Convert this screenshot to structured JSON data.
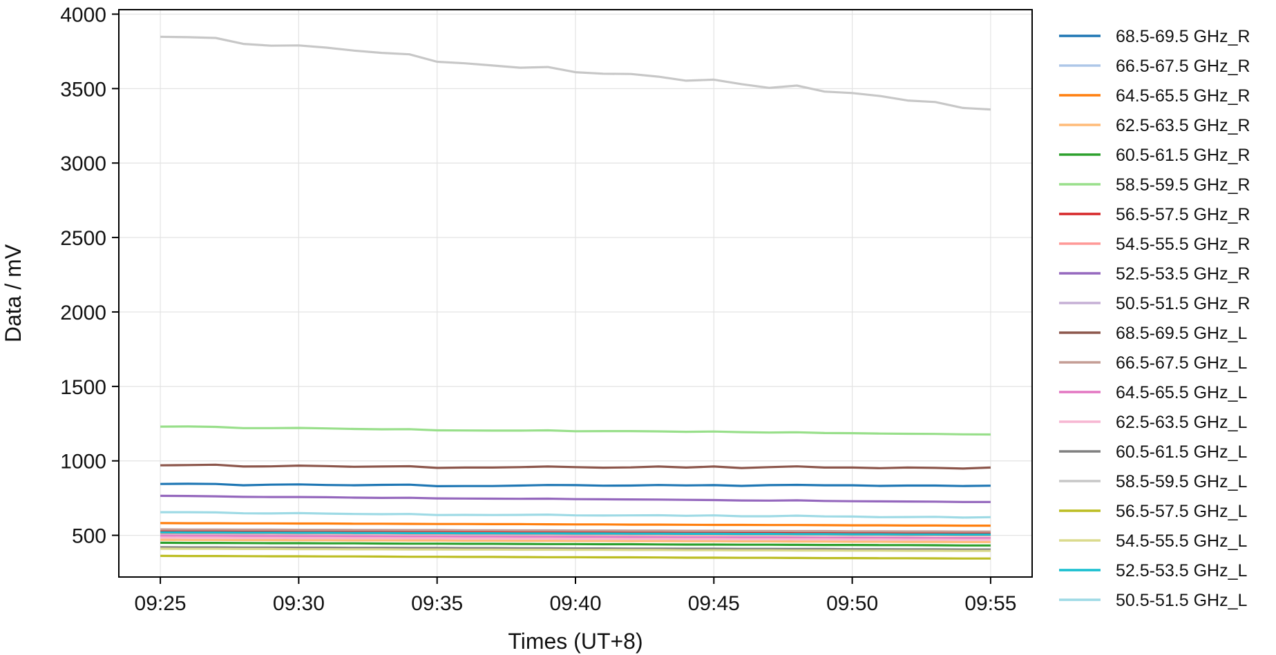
{
  "chart_data": {
    "type": "line",
    "xlabel": "Times (UT+8)",
    "ylabel": "Data / mV",
    "x_unit": "time (HH:MM, UT+8)",
    "xlim": [
      "09:23:30",
      "09:56:30"
    ],
    "ylim": [
      220,
      4030
    ],
    "x_ticks": [
      "09:25",
      "09:30",
      "09:35",
      "09:40",
      "09:45",
      "09:50",
      "09:55"
    ],
    "y_ticks": [
      500,
      1000,
      1500,
      2000,
      2500,
      3000,
      3500,
      4000
    ],
    "grid": true,
    "legend_position": "outside-right",
    "x": [
      "09:25",
      "09:26",
      "09:27",
      "09:28",
      "09:29",
      "09:30",
      "09:31",
      "09:32",
      "09:33",
      "09:34",
      "09:35",
      "09:36",
      "09:37",
      "09:38",
      "09:39",
      "09:40",
      "09:41",
      "09:42",
      "09:43",
      "09:44",
      "09:45",
      "09:46",
      "09:47",
      "09:48",
      "09:49",
      "09:50",
      "09:51",
      "09:52",
      "09:53",
      "09:54",
      "09:55"
    ],
    "series": [
      {
        "name": "68.5-69.5 GHz_R",
        "color": "#1f77b4",
        "values": [
          845,
          846,
          845,
          836,
          840,
          842,
          838,
          836,
          839,
          840,
          830,
          831,
          831,
          834,
          838,
          837,
          833,
          834,
          838,
          835,
          837,
          832,
          837,
          839,
          836,
          836,
          832,
          834,
          834,
          831,
          833
        ]
      },
      {
        "name": "66.5-67.5 GHz_R",
        "color": "#aec7e8",
        "values": [
          530,
          529,
          528,
          527,
          527,
          526,
          525,
          524,
          524,
          523,
          522,
          521,
          520,
          520,
          519,
          518,
          517,
          516,
          516,
          515,
          514,
          513,
          512,
          512,
          511,
          510,
          509,
          508,
          508,
          507,
          506
        ]
      },
      {
        "name": "64.5-65.5 GHz_R",
        "color": "#ff7f0e",
        "values": [
          582,
          581,
          581,
          580,
          580,
          579,
          579,
          578,
          578,
          577,
          576,
          576,
          575,
          575,
          574,
          573,
          573,
          572,
          572,
          571,
          570,
          570,
          569,
          569,
          568,
          567,
          567,
          566,
          566,
          565,
          565
        ]
      },
      {
        "name": "62.5-63.5 GHz_R",
        "color": "#ffbb78",
        "values": [
          470,
          469,
          469,
          468,
          468,
          467,
          467,
          466,
          466,
          465,
          465,
          464,
          464,
          463,
          463,
          462,
          462,
          461,
          461,
          460,
          460,
          459,
          459,
          458,
          458,
          457,
          457,
          456,
          456,
          455,
          455
        ]
      },
      {
        "name": "60.5-61.5 GHz_R",
        "color": "#2ca02c",
        "values": [
          450,
          449,
          449,
          448,
          447,
          447,
          446,
          446,
          445,
          444,
          444,
          443,
          443,
          442,
          441,
          441,
          440,
          440,
          439,
          438,
          438,
          437,
          437,
          436,
          435,
          435,
          434,
          434,
          433,
          432,
          432
        ]
      },
      {
        "name": "58.5-59.5 GHz_R",
        "color": "#98df8a",
        "values": [
          1230,
          1231,
          1228,
          1220,
          1220,
          1221,
          1218,
          1214,
          1212,
          1213,
          1205,
          1204,
          1203,
          1203,
          1205,
          1199,
          1200,
          1200,
          1198,
          1195,
          1197,
          1193,
          1190,
          1192,
          1187,
          1186,
          1183,
          1182,
          1181,
          1178,
          1177
        ]
      },
      {
        "name": "56.5-57.5 GHz_R",
        "color": "#d62728",
        "values": [
          527,
          526,
          526,
          525,
          525,
          524,
          524,
          523,
          523,
          522,
          522,
          521,
          521,
          520,
          520,
          519,
          519,
          518,
          518,
          517,
          517,
          516,
          516,
          515,
          515,
          514,
          514,
          513,
          513,
          512,
          512
        ]
      },
      {
        "name": "54.5-55.5 GHz_R",
        "color": "#ff9896",
        "values": [
          515,
          514,
          514,
          513,
          513,
          512,
          512,
          511,
          511,
          510,
          510,
          509,
          509,
          508,
          508,
          507,
          507,
          506,
          506,
          505,
          505,
          504,
          504,
          503,
          503,
          502,
          502,
          501,
          501,
          500,
          500
        ]
      },
      {
        "name": "52.5-53.5 GHz_R",
        "color": "#9467bd",
        "values": [
          765,
          764,
          762,
          758,
          757,
          757,
          756,
          753,
          751,
          752,
          748,
          747,
          746,
          745,
          746,
          743,
          742,
          741,
          740,
          738,
          737,
          734,
          733,
          735,
          731,
          729,
          728,
          727,
          726,
          724,
          724
        ]
      },
      {
        "name": "50.5-51.5 GHz_R",
        "color": "#c5b0d5",
        "values": [
          500,
          499,
          499,
          498,
          497,
          497,
          496,
          496,
          495,
          494,
          494,
          493,
          493,
          492,
          491,
          491,
          490,
          490,
          489,
          488,
          488,
          487,
          487,
          486,
          485,
          485,
          484,
          484,
          483,
          482,
          482
        ]
      },
      {
        "name": "68.5-69.5 GHz_L",
        "color": "#8c564b",
        "values": [
          970,
          972,
          974,
          962,
          963,
          968,
          965,
          960,
          962,
          964,
          953,
          955,
          955,
          958,
          962,
          958,
          954,
          956,
          962,
          955,
          962,
          952,
          958,
          963,
          955,
          955,
          951,
          955,
          953,
          948,
          955
        ]
      },
      {
        "name": "66.5-67.5 GHz_L",
        "color": "#c49c94",
        "values": [
          540,
          539,
          539,
          538,
          538,
          537,
          537,
          536,
          536,
          535,
          535,
          534,
          534,
          533,
          533,
          532,
          532,
          531,
          531,
          530,
          530,
          529,
          529,
          528,
          528,
          527,
          527,
          526,
          526,
          525,
          525
        ]
      },
      {
        "name": "64.5-65.5 GHz_L",
        "color": "#e377c2",
        "values": [
          495,
          494,
          494,
          493,
          493,
          492,
          492,
          491,
          491,
          490,
          490,
          489,
          489,
          488,
          488,
          487,
          487,
          486,
          486,
          485,
          485,
          484,
          484,
          483,
          483,
          482,
          482,
          481,
          481,
          480,
          480
        ]
      },
      {
        "name": "62.5-63.5 GHz_L",
        "color": "#f7b6d2",
        "values": [
          485,
          484,
          484,
          483,
          483,
          482,
          482,
          481,
          481,
          480,
          480,
          479,
          479,
          478,
          478,
          477,
          477,
          476,
          476,
          475,
          475,
          474,
          474,
          473,
          473,
          472,
          472,
          471,
          471,
          470,
          470
        ]
      },
      {
        "name": "60.5-61.5 GHz_L",
        "color": "#7f7f7f",
        "values": [
          420,
          419,
          419,
          418,
          418,
          417,
          417,
          416,
          416,
          415,
          415,
          414,
          414,
          413,
          413,
          412,
          412,
          411,
          411,
          410,
          410,
          409,
          409,
          408,
          408,
          407,
          407,
          406,
          406,
          405,
          405
        ]
      },
      {
        "name": "58.5-59.5 GHz_L",
        "color": "#c7c7c7",
        "values": [
          3848,
          3845,
          3840,
          3800,
          3788,
          3790,
          3775,
          3755,
          3740,
          3730,
          3680,
          3670,
          3655,
          3640,
          3645,
          3610,
          3600,
          3598,
          3580,
          3553,
          3560,
          3530,
          3505,
          3520,
          3480,
          3470,
          3450,
          3420,
          3410,
          3370,
          3360
        ]
      },
      {
        "name": "56.5-57.5 GHz_L",
        "color": "#bcbd22",
        "values": [
          362,
          361,
          361,
          360,
          359,
          359,
          358,
          358,
          357,
          356,
          356,
          355,
          355,
          354,
          353,
          353,
          352,
          352,
          351,
          350,
          350,
          349,
          349,
          348,
          347,
          347,
          346,
          346,
          345,
          344,
          344
        ]
      },
      {
        "name": "54.5-55.5 GHz_L",
        "color": "#dbdb8d",
        "values": [
          410,
          409,
          409,
          408,
          408,
          407,
          407,
          406,
          406,
          405,
          405,
          404,
          404,
          403,
          403,
          402,
          402,
          401,
          401,
          400,
          400,
          399,
          399,
          398,
          398,
          397,
          397,
          396,
          396,
          395,
          395
        ]
      },
      {
        "name": "52.5-53.5 GHz_L",
        "color": "#17becf",
        "values": [
          520,
          519,
          519,
          518,
          518,
          517,
          517,
          516,
          516,
          515,
          515,
          514,
          514,
          513,
          513,
          512,
          512,
          511,
          511,
          510,
          510,
          509,
          509,
          508,
          508,
          507,
          507,
          506,
          506,
          505,
          505
        ]
      },
      {
        "name": "50.5-51.5 GHz_L",
        "color": "#9edae5",
        "values": [
          655,
          655,
          654,
          648,
          647,
          649,
          646,
          643,
          642,
          643,
          636,
          637,
          636,
          637,
          639,
          634,
          633,
          634,
          635,
          631,
          634,
          628,
          628,
          632,
          627,
          626,
          622,
          623,
          624,
          619,
          622
        ]
      }
    ]
  }
}
